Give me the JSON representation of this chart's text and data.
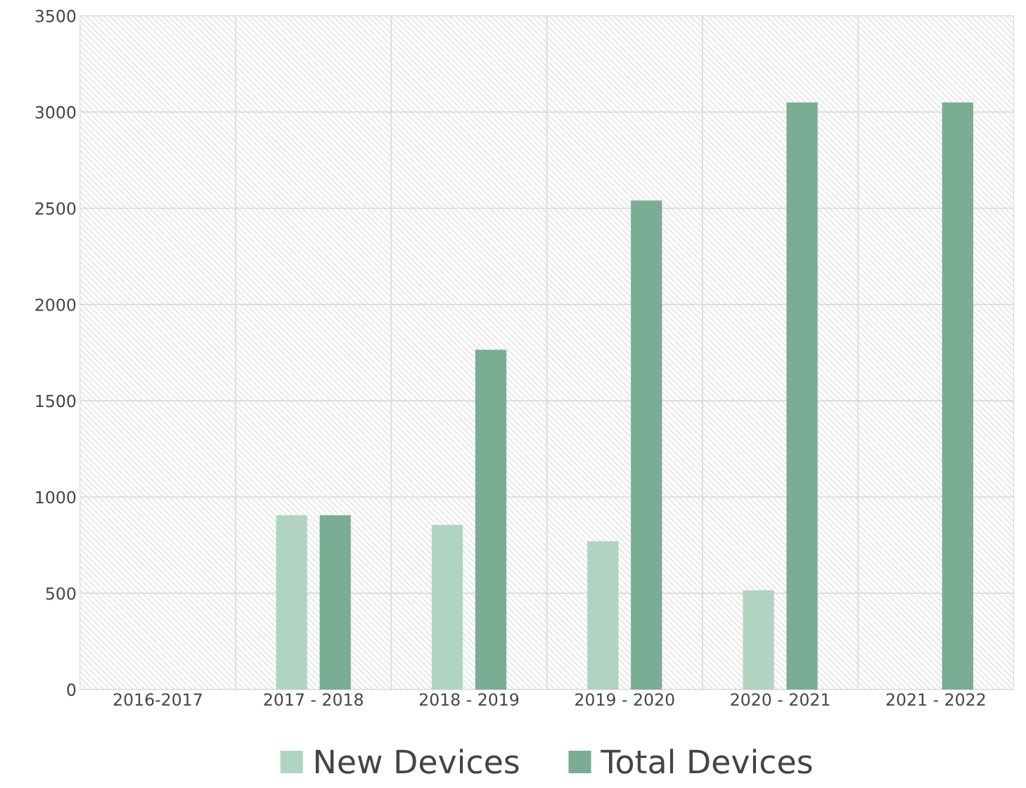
{
  "chart_data": {
    "type": "bar",
    "categories": [
      "2016-2017",
      "2017 - 2018",
      "2018 - 2019",
      "2019 - 2020",
      "2020 - 2021",
      "2021 - 2022"
    ],
    "series": [
      {
        "name": "New Devices",
        "color": "#b0d4c1",
        "values": [
          null,
          905,
          855,
          770,
          515,
          null
        ]
      },
      {
        "name": "Total Devices",
        "color": "#7bac94",
        "values": [
          null,
          905,
          1765,
          2540,
          3050,
          3050
        ]
      }
    ],
    "ylim": [
      0,
      3500
    ],
    "yticks": [
      0,
      500,
      1000,
      1500,
      2000,
      2500,
      3000,
      3500
    ],
    "grid": true,
    "legend": "bottom"
  }
}
